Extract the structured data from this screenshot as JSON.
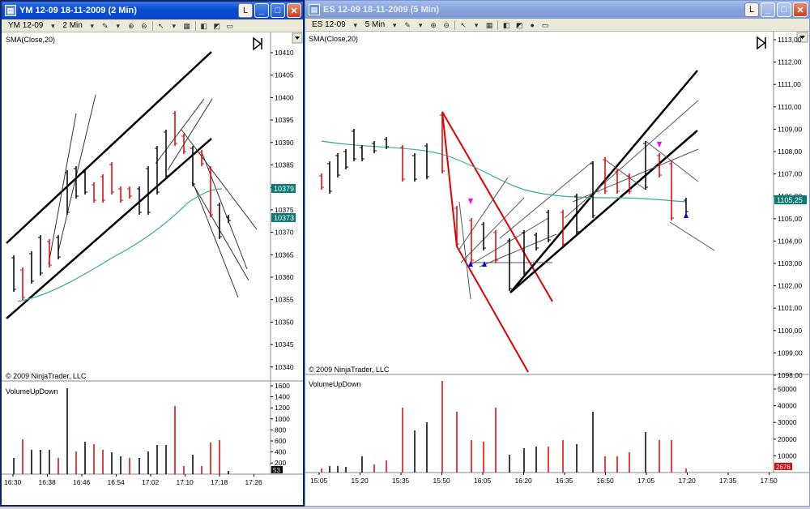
{
  "left": {
    "title": "YM 12-09  18-11-2009 (2 Min)",
    "title_icon": "chart-icon",
    "toolbar": {
      "instrument": "YM 12-09",
      "interval": "2 Min"
    },
    "window_buttons": {
      "logo": "L",
      "minimize": "_",
      "maximize": "□",
      "close": "✕"
    },
    "indicator_label": "SMA(Close,20)",
    "copyright": "© 2009 NinjaTrader, LLC",
    "volume_label": "VolumeUpDown",
    "price_ticks": [
      "10410",
      "10405",
      "10400",
      "10395",
      "10390",
      "10385",
      "10380",
      "10375",
      "10370",
      "10365",
      "10360",
      "10355",
      "10350",
      "10345",
      "10340"
    ],
    "price_badge_1": "10379",
    "price_badge_2": "10373",
    "volume_ticks": [
      "1600",
      "1400",
      "1200",
      "1000",
      "800",
      "600",
      "400",
      "200"
    ],
    "volume_badge": "53",
    "time_ticks": [
      "16:30",
      "16:38",
      "16:46",
      "16:54",
      "17:02",
      "17:10",
      "17:18",
      "17:26"
    ]
  },
  "right": {
    "title": "ES 12-09  18-11-2009 (5 Min)",
    "title_icon": "chart-icon",
    "toolbar": {
      "instrument": "ES 12-09",
      "interval": "5 Min"
    },
    "window_buttons": {
      "logo": "L",
      "minimize": "_",
      "maximize": "□",
      "close": "✕"
    },
    "indicator_label": "SMA(Close,20)",
    "copyright": "© 2009 NinjaTrader, LLC",
    "volume_label": "VolumeUpDown",
    "price_ticks": [
      "1113,00",
      "1112,00",
      "1111,00",
      "1110,00",
      "1109,00",
      "1108,00",
      "1107,00",
      "1106,00",
      "1105,00",
      "1104,00",
      "1103,00",
      "1102,00",
      "1101,00",
      "1100,00",
      "1099,00",
      "1098,00"
    ],
    "price_badge": "1105,25",
    "volume_ticks": [
      "50000",
      "40000",
      "30000",
      "20000",
      "10000"
    ],
    "volume_badge": "2676",
    "time_ticks": [
      "15:05",
      "15:20",
      "15:35",
      "15:50",
      "16:05",
      "16:20",
      "16:35",
      "16:50",
      "17:05",
      "17:20",
      "17:35",
      "17:50"
    ]
  },
  "colors": {
    "up": "#000000",
    "down": "#e00000",
    "sma": "#3aa6a6",
    "badge_teal": "#0a7a72",
    "badge_red": "#d01010"
  }
}
